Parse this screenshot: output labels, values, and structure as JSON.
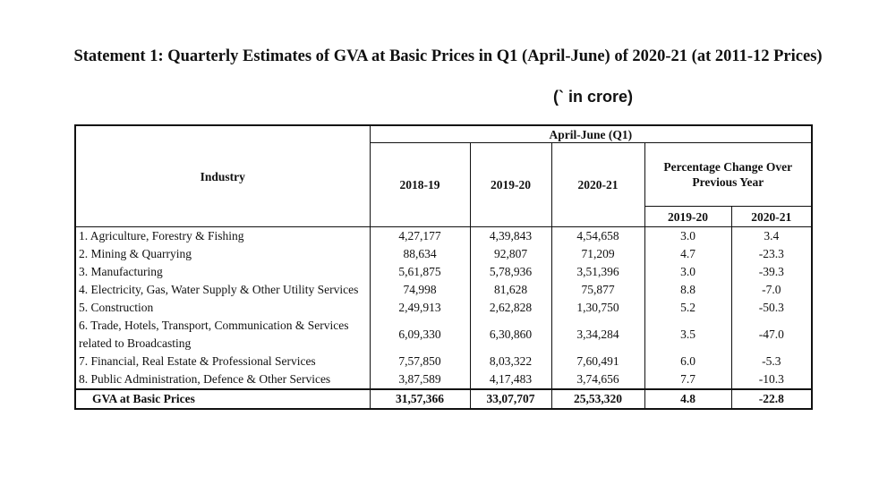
{
  "title": "Statement 1: Quarterly Estimates of GVA at Basic Prices in Q1 (April-June) of 2020-21 (at 2011-12 Prices)",
  "unit": "(` in crore)",
  "table": {
    "industry_header": "Industry",
    "period_header": "April-June (Q1)",
    "year_headers": [
      "2018-19",
      "2019-20",
      "2020-21"
    ],
    "pct_header": "Percentage Change Over Previous Year",
    "pct_year_headers": [
      "2019-20",
      "2020-21"
    ],
    "rows": [
      {
        "industry": "1. Agriculture, Forestry & Fishing",
        "y2018_19": "4,27,177",
        "y2019_20": "4,39,843",
        "y2020_21": "4,54,658",
        "pct_2019_20": "3.0",
        "pct_2020_21": "3.4"
      },
      {
        "industry": "2. Mining & Quarrying",
        "y2018_19": "88,634",
        "y2019_20": "92,807",
        "y2020_21": "71,209",
        "pct_2019_20": "4.7",
        "pct_2020_21": "-23.3"
      },
      {
        "industry": "3. Manufacturing",
        "y2018_19": "5,61,875",
        "y2019_20": "5,78,936",
        "y2020_21": "3,51,396",
        "pct_2019_20": "3.0",
        "pct_2020_21": "-39.3"
      },
      {
        "industry": "4. Electricity, Gas, Water Supply & Other Utility Services",
        "y2018_19": "74,998",
        "y2019_20": "81,628",
        "y2020_21": "75,877",
        "pct_2019_20": "8.8",
        "pct_2020_21": "-7.0"
      },
      {
        "industry": "5. Construction",
        "y2018_19": "2,49,913",
        "y2019_20": "2,62,828",
        "y2020_21": "1,30,750",
        "pct_2019_20": "5.2",
        "pct_2020_21": "-50.3"
      },
      {
        "industry": "6. Trade, Hotels, Transport, Communication & Services related to Broadcasting",
        "y2018_19": "6,09,330",
        "y2019_20": "6,30,860",
        "y2020_21": "3,34,284",
        "pct_2019_20": "3.5",
        "pct_2020_21": "-47.0"
      },
      {
        "industry": "7. Financial, Real Estate & Professional Services",
        "y2018_19": "7,57,850",
        "y2019_20": "8,03,322",
        "y2020_21": "7,60,491",
        "pct_2019_20": "6.0",
        "pct_2020_21": "-5.3"
      },
      {
        "industry": "8. Public Administration, Defence & Other Services",
        "y2018_19": "3,87,589",
        "y2019_20": "4,17,483",
        "y2020_21": "3,74,656",
        "pct_2019_20": "7.7",
        "pct_2020_21": "-10.3"
      }
    ],
    "total": {
      "industry": "GVA at Basic Prices",
      "y2018_19": "31,57,366",
      "y2019_20": "33,07,707",
      "y2020_21": "25,53,320",
      "pct_2019_20": "4.8",
      "pct_2020_21": "-22.8"
    }
  }
}
